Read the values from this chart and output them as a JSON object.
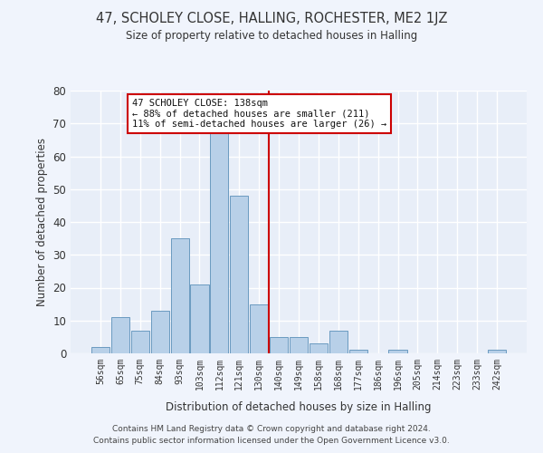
{
  "title_line1": "47, SCHOLEY CLOSE, HALLING, ROCHESTER, ME2 1JZ",
  "title_line2": "Size of property relative to detached houses in Halling",
  "xlabel": "Distribution of detached houses by size in Halling",
  "ylabel": "Number of detached properties",
  "categories": [
    "56sqm",
    "65sqm",
    "75sqm",
    "84sqm",
    "93sqm",
    "103sqm",
    "112sqm",
    "121sqm",
    "130sqm",
    "140sqm",
    "149sqm",
    "158sqm",
    "168sqm",
    "177sqm",
    "186sqm",
    "196sqm",
    "205sqm",
    "214sqm",
    "223sqm",
    "233sqm",
    "242sqm"
  ],
  "bar_values": [
    2,
    11,
    7,
    13,
    35,
    21,
    68,
    48,
    15,
    5,
    5,
    3,
    7,
    1,
    0,
    1,
    0,
    0,
    0,
    0,
    1
  ],
  "bar_color": "#b8d0e8",
  "bar_edge_color": "#6a9ac0",
  "vline_x": 8.5,
  "vline_color": "#cc0000",
  "annotation_text": "47 SCHOLEY CLOSE: 138sqm\n← 88% of detached houses are smaller (211)\n11% of semi-detached houses are larger (26) →",
  "annotation_box_color": "#cc0000",
  "ylim": [
    0,
    80
  ],
  "yticks": [
    0,
    10,
    20,
    30,
    40,
    50,
    60,
    70,
    80
  ],
  "bg_color": "#e8eef8",
  "grid_color": "#ffffff",
  "footer_line1": "Contains HM Land Registry data © Crown copyright and database right 2024.",
  "footer_line2": "Contains public sector information licensed under the Open Government Licence v3.0."
}
